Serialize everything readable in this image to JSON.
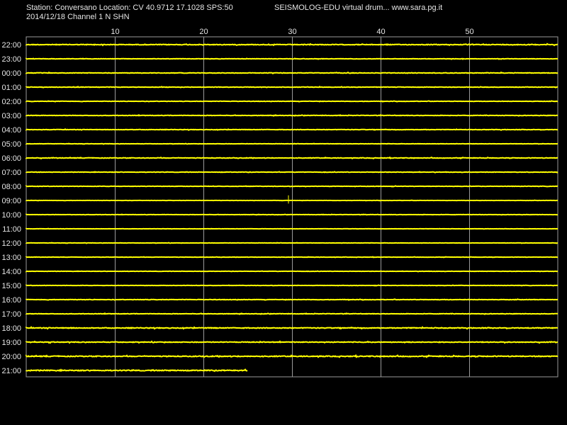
{
  "header": {
    "left": "Station: Conversano Location: CV 40.9712 17.1028 SPS:50",
    "right": "SEISMOLOG-EDU virtual drum... www.sara.pg.it",
    "sub": "2014/12/18  Channel 1 N SHN"
  },
  "colors": {
    "background": "#000000",
    "trace": "#ffff00",
    "grid": "#9a9a9a",
    "text": "#e6e6e6"
  },
  "chart_data": {
    "type": "line",
    "title": "Station: Conversano Location: CV 40.9712 17.1028 SPS:50",
    "subtitle": "2014/12/18  Channel 1 N SHN",
    "xlim": [
      0,
      60
    ],
    "x_ticks": [
      10,
      20,
      30,
      40,
      50
    ],
    "x_tick_labels": [
      "10",
      "20",
      "30",
      "40",
      "50"
    ],
    "row_labels": [
      "22:00",
      "23:00",
      "00:00",
      "01:00",
      "02:00",
      "03:00",
      "04:00",
      "05:00",
      "06:00",
      "07:00",
      "08:00",
      "09:00",
      "10:00",
      "11:00",
      "12:00",
      "13:00",
      "14:00",
      "15:00",
      "16:00",
      "17:00",
      "18:00",
      "19:00",
      "20:00",
      "21:00"
    ],
    "row_noise": [
      0.45,
      0.25,
      0.35,
      0.3,
      0.25,
      0.3,
      0.3,
      0.2,
      0.35,
      0.3,
      0.25,
      0.15,
      0.2,
      0.15,
      0.2,
      0.2,
      0.2,
      0.2,
      0.3,
      0.3,
      0.5,
      0.45,
      0.55,
      0.6
    ],
    "row_end_minute": [
      60,
      60,
      60,
      60,
      60,
      60,
      60,
      60,
      60,
      60,
      60,
      60,
      60,
      60,
      60,
      60,
      60,
      60,
      60,
      60,
      60,
      60,
      60,
      25
    ],
    "events": [
      {
        "row": "09:00",
        "minute": 29.6,
        "amplitude": 1.2
      }
    ]
  }
}
